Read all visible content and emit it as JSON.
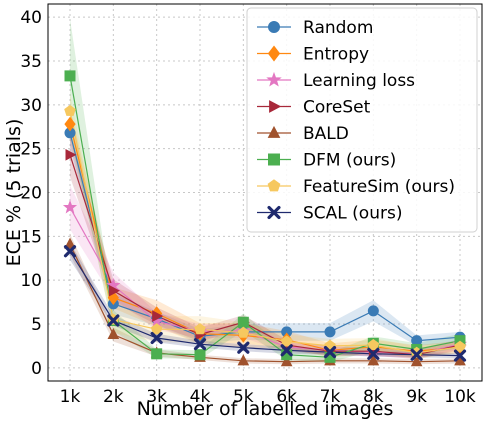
{
  "chart_data": {
    "type": "line",
    "xlabel": "Number of labelled images",
    "ylabel": "ECE % (5 trials)",
    "categories": [
      "1k",
      "2k",
      "3k",
      "4k",
      "5k",
      "6k",
      "7k",
      "8k",
      "9k",
      "10k"
    ],
    "ylim": [
      -1.5,
      41.5
    ],
    "yticks": [
      0,
      5,
      10,
      15,
      20,
      25,
      30,
      35,
      40
    ],
    "grid": true,
    "legend_position": "top-right",
    "series": [
      {
        "name": "Random",
        "color": "#3a7bb5",
        "marker": "circle",
        "values": [
          26.8,
          7.3,
          5.6,
          3.6,
          4.1,
          4.1,
          4.1,
          6.5,
          3.1,
          3.5
        ],
        "band": [
          1.5,
          1.2,
          0.8,
          0.8,
          0.9,
          1.0,
          1.0,
          1.2,
          0.6,
          0.6
        ]
      },
      {
        "name": "Entropy",
        "color": "#ff8811",
        "marker": "diamond",
        "values": [
          27.8,
          8.0,
          6.2,
          3.9,
          3.7,
          3.2,
          2.0,
          2.4,
          1.9,
          2.4
        ],
        "band": [
          1.8,
          1.2,
          1.5,
          1.2,
          1.4,
          1.0,
          0.8,
          0.8,
          0.7,
          0.7
        ]
      },
      {
        "name": "Learning loss",
        "color": "#e377c2",
        "marker": "star",
        "values": [
          18.3,
          9.4,
          5.3,
          4.2,
          4.2,
          2.4,
          2.0,
          1.8,
          1.6,
          2.7
        ],
        "band": [
          2.5,
          1.5,
          1.0,
          0.8,
          0.8,
          0.6,
          0.5,
          0.5,
          0.5,
          0.6
        ]
      },
      {
        "name": "CoreSet",
        "color": "#a8283a",
        "marker": "triangle-right",
        "values": [
          24.3,
          8.8,
          5.9,
          3.8,
          5.2,
          2.6,
          1.9,
          1.9,
          1.5,
          2.6
        ],
        "band": [
          2.5,
          1.3,
          1.0,
          0.8,
          0.8,
          0.6,
          0.5,
          0.5,
          0.5,
          0.6
        ]
      },
      {
        "name": "BALD",
        "color": "#a0522d",
        "marker": "triangle-up",
        "values": [
          14.1,
          3.8,
          1.7,
          1.2,
          0.8,
          0.7,
          0.8,
          0.8,
          0.7,
          0.8
        ],
        "band": [
          1.2,
          0.8,
          0.4,
          0.3,
          0.3,
          0.3,
          0.3,
          0.3,
          0.3,
          0.3
        ]
      },
      {
        "name": "DFM (ours)",
        "color": "#4caf50",
        "marker": "square",
        "values": [
          33.3,
          5.4,
          1.6,
          1.5,
          5.2,
          1.5,
          1.2,
          2.8,
          2.1,
          3.1
        ],
        "band": [
          6.5,
          1.2,
          0.5,
          0.5,
          1.0,
          0.6,
          0.6,
          0.8,
          0.7,
          0.8
        ]
      },
      {
        "name": "FeatureSim (ours)",
        "color": "#f6c85f",
        "marker": "pentagon",
        "values": [
          29.3,
          5.5,
          4.4,
          4.4,
          4.0,
          3.0,
          2.5,
          2.6,
          1.7,
          2.4
        ],
        "band": [
          2.0,
          1.5,
          1.5,
          1.5,
          1.2,
          0.8,
          0.8,
          0.8,
          0.7,
          0.7
        ]
      },
      {
        "name": "SCAL (ours)",
        "color": "#1f2a6e",
        "marker": "x",
        "values": [
          13.3,
          5.4,
          3.4,
          2.7,
          2.3,
          2.0,
          1.8,
          1.6,
          1.5,
          1.4
        ],
        "band": [
          1.0,
          0.6,
          0.5,
          0.4,
          0.4,
          0.4,
          0.3,
          0.3,
          0.3,
          0.3
        ]
      }
    ]
  }
}
